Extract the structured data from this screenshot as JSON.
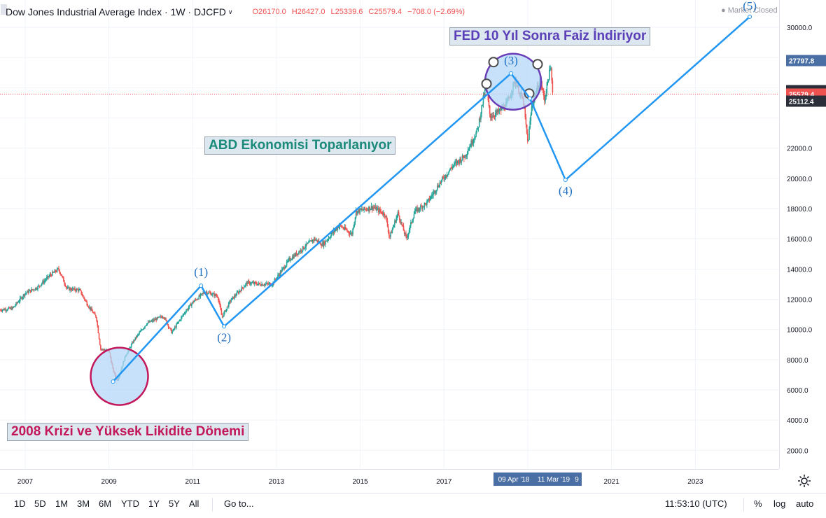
{
  "header": {
    "title": "Dow Jones Industrial Average Index · 1W · DJCFD",
    "ohlc": {
      "open_label": "O",
      "open": "26170.0",
      "high_label": "H",
      "high": "26427.0",
      "low_label": "L",
      "low": "25339.6",
      "close_label": "C",
      "close": "25579.4",
      "change": "−708.0 (−2.69%)"
    },
    "market_status": "● Market Closed"
  },
  "annotations": {
    "fed": "FED 10 Yıl Sonra Faiz İndiriyor",
    "abd": "ABD Ekonomisi Toparlanıyor",
    "kriz": "2008 Krizi ve Yüksek Likidite Dönemi"
  },
  "colors": {
    "price_up": "#26a69a",
    "price_down": "#ef5350",
    "wave_line": "#2196f3",
    "wave_label": "#1e6fc4",
    "circle_fill": "#b3d7f7",
    "circle_crisis_stroke": "#c2185b",
    "circle_fed_stroke": "#6a3db8",
    "last_price_bg": "#ef5350",
    "axis_label_bg": "#4a6fa5"
  },
  "chart_data": {
    "type": "line",
    "title": "Dow Jones Industrial Average Index",
    "interval": "1W",
    "symbol": "DJCFD",
    "y_ticks": [
      2000,
      4000,
      6000,
      8000,
      10000,
      12000,
      14000,
      16000,
      18000,
      20000,
      22000,
      24000,
      26000,
      28000,
      30000
    ],
    "y_tick_labels": [
      "2000.0",
      "4000.0",
      "6000.0",
      "8000.0",
      "10000.0",
      "12000.0",
      "14000.0",
      "16000.0",
      "18000.0",
      "20000.0",
      "22000.0",
      "",
      "",
      "",
      "30000.0"
    ],
    "ylim": [
      0,
      31500
    ],
    "x_tick_labels": [
      "2007",
      "2009",
      "2011",
      "2013",
      "2015",
      "2017",
      "2019",
      "2021",
      "2023"
    ],
    "x_ticks": [
      2007,
      2009,
      2011,
      2013,
      2015,
      2017,
      2019,
      2021,
      2023
    ],
    "xlim": [
      2006.4,
      2025.0
    ],
    "price_series": {
      "name": "DJCFD",
      "points": [
        [
          2006.4,
          11300
        ],
        [
          2006.7,
          11400
        ],
        [
          2007.0,
          12400
        ],
        [
          2007.3,
          12800
        ],
        [
          2007.6,
          13600
        ],
        [
          2007.8,
          14000
        ],
        [
          2008.0,
          12700
        ],
        [
          2008.3,
          12600
        ],
        [
          2008.5,
          11600
        ],
        [
          2008.7,
          10800
        ],
        [
          2008.8,
          8700
        ],
        [
          2009.0,
          8600
        ],
        [
          2009.1,
          7300
        ],
        [
          2009.2,
          6600
        ],
        [
          2009.4,
          8300
        ],
        [
          2009.6,
          9300
        ],
        [
          2009.9,
          10400
        ],
        [
          2010.3,
          10900
        ],
        [
          2010.5,
          9800
        ],
        [
          2010.8,
          11100
        ],
        [
          2011.0,
          11800
        ],
        [
          2011.3,
          12500
        ],
        [
          2011.6,
          12200
        ],
        [
          2011.7,
          10800
        ],
        [
          2011.9,
          11900
        ],
        [
          2012.3,
          13100
        ],
        [
          2012.6,
          13000
        ],
        [
          2012.9,
          13000
        ],
        [
          2013.3,
          14600
        ],
        [
          2013.6,
          15300
        ],
        [
          2013.9,
          16000
        ],
        [
          2014.1,
          15600
        ],
        [
          2014.5,
          16900
        ],
        [
          2014.8,
          16300
        ],
        [
          2014.9,
          17800
        ],
        [
          2015.3,
          18100
        ],
        [
          2015.6,
          17600
        ],
        [
          2015.7,
          16100
        ],
        [
          2015.9,
          17700
        ],
        [
          2016.1,
          16000
        ],
        [
          2016.3,
          17800
        ],
        [
          2016.6,
          18400
        ],
        [
          2016.9,
          19700
        ],
        [
          2017.2,
          20800
        ],
        [
          2017.5,
          21500
        ],
        [
          2017.8,
          23200
        ],
        [
          2018.0,
          26200
        ],
        [
          2018.1,
          24100
        ],
        [
          2018.3,
          24400
        ],
        [
          2018.5,
          24900
        ],
        [
          2018.7,
          26500
        ],
        [
          2018.9,
          25000
        ],
        [
          2019.0,
          22300
        ],
        [
          2019.1,
          24900
        ],
        [
          2019.3,
          26500
        ],
        [
          2019.4,
          25200
        ],
        [
          2019.5,
          26800
        ],
        [
          2019.55,
          27300
        ],
        [
          2019.6,
          25600
        ]
      ]
    },
    "wave_series": {
      "name": "Elliott",
      "points": [
        {
          "label": "",
          "x": 2009.1,
          "y": 6550
        },
        {
          "label": "(1)",
          "x": 2011.2,
          "y": 12900
        },
        {
          "label": "(2)",
          "x": 2011.75,
          "y": 10200
        },
        {
          "label": "(3)",
          "x": 2018.6,
          "y": 26950
        },
        {
          "label": "",
          "x": 2019.05,
          "y": 25300
        },
        {
          "label": "(4)",
          "x": 2019.9,
          "y": 19900
        },
        {
          "label": "(5)",
          "x": 2024.3,
          "y": 30700
        }
      ]
    },
    "price_axis_labels": [
      {
        "value": 27797.8,
        "text": "27797.8",
        "style": "blue"
      },
      {
        "value": 25806.9,
        "text": "25806.9",
        "style": "dark"
      },
      {
        "value": 25579.4,
        "text": "25579.4",
        "style": "red"
      },
      {
        "value": 25112.4,
        "text": "25112.4",
        "style": "dark"
      }
    ],
    "last_price": 25579.4,
    "time_labels": [
      "09 Apr '18",
      "11 Mar '19",
      "9"
    ],
    "crisis_circle_center": {
      "x": 2009.25,
      "y": 6900
    },
    "fed_circle_center": {
      "x": 2018.65,
      "y": 26400
    }
  },
  "toolbar": {
    "timeframes": [
      "1D",
      "5D",
      "1M",
      "3M",
      "6M",
      "YTD",
      "1Y",
      "5Y",
      "All"
    ],
    "goto": "Go to...",
    "clock": "11:53:10 (UTC)",
    "percent": "%",
    "log": "log",
    "auto": "auto"
  }
}
